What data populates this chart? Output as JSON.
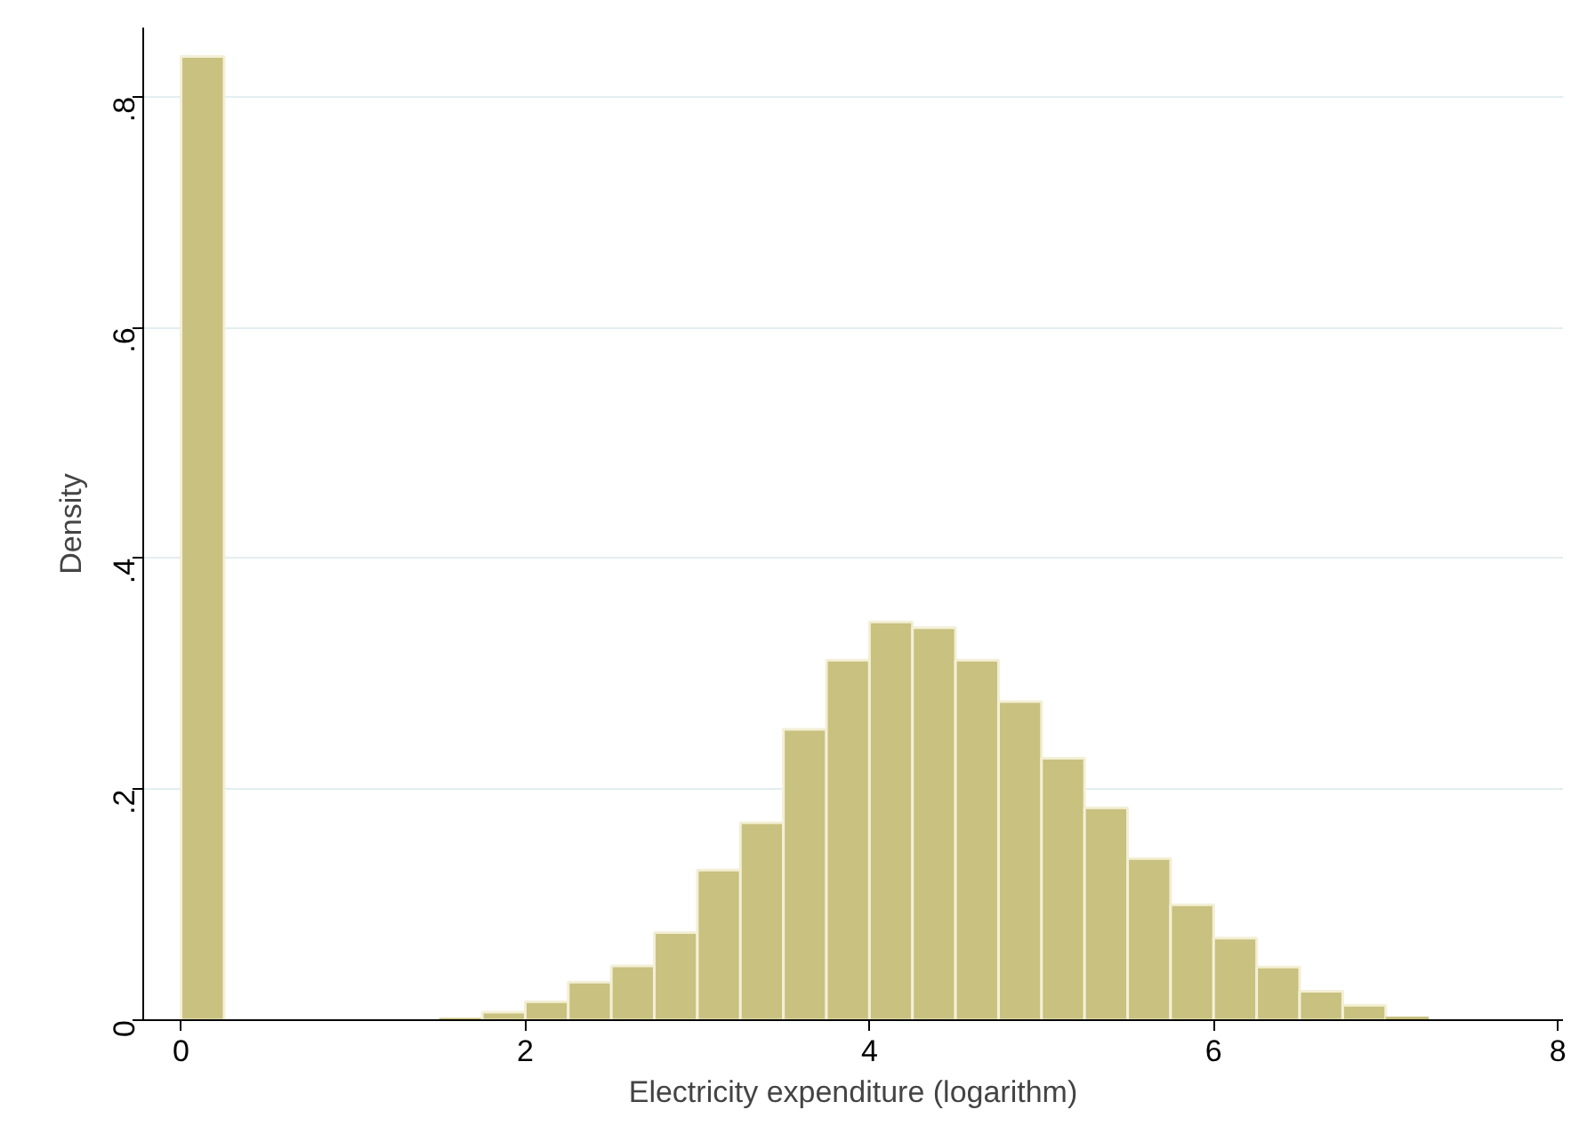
{
  "chart_data": {
    "type": "histogram",
    "xlabel": "Electricity expenditure (logarithm)",
    "ylabel": "Density",
    "bins": [
      0,
      0.25,
      0.5,
      0.75,
      1,
      1.25,
      1.5,
      1.75,
      2,
      2.25,
      2.5,
      2.75,
      3,
      3.25,
      3.5,
      3.75,
      4,
      4.25,
      4.5,
      4.75,
      5,
      5.25,
      5.5,
      5.75,
      6,
      6.25,
      6.5,
      6.75,
      7,
      7.25,
      7.5,
      7.75
    ],
    "values": [
      0.835,
      null,
      null,
      null,
      0,
      0,
      0.002,
      0.007,
      0.016,
      0.033,
      0.047,
      0.076,
      0.13,
      0.171,
      0.252,
      0.312,
      0.345,
      0.34,
      0.312,
      0.276,
      0.227,
      0.184,
      0.14,
      0.1,
      0.071,
      0.046,
      0.025,
      0.013,
      0.003,
      0,
      null
    ],
    "color": "#c8c17f",
    "xlim": [
      -0.22,
      8.03
    ],
    "xticks": [
      0,
      2,
      4,
      6,
      8
    ],
    "ylim": [
      0,
      0.86
    ],
    "yticks": [
      0,
      {
        "value": 0.2,
        "label": ".2"
      },
      {
        "value": 0.4,
        "label": ".4"
      },
      {
        "value": 0.6,
        "label": ".6"
      },
      {
        "value": 0.8,
        "label": ".8"
      }
    ],
    "grid": "y"
  }
}
